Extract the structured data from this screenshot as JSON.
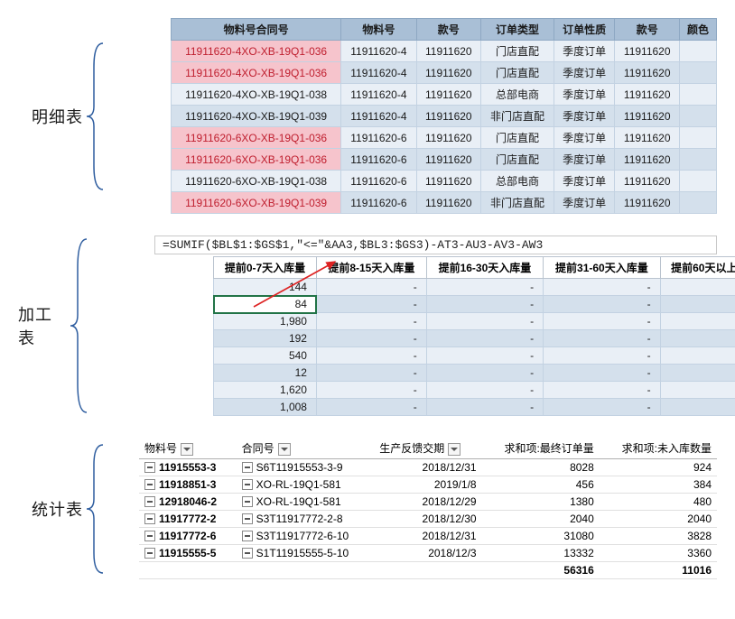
{
  "section1": {
    "label": "明细表",
    "columns": [
      "物料号合同号",
      "物料号",
      "款号",
      "订单类型",
      "订单性质",
      "款号",
      "颜色"
    ],
    "rows": [
      {
        "c": [
          "11911620-4XO-XB-19Q1-036",
          "11911620-4",
          "11911620",
          "门店直配",
          "季度订单",
          "11911620",
          ""
        ],
        "hl": true
      },
      {
        "c": [
          "11911620-4XO-XB-19Q1-036",
          "11911620-4",
          "11911620",
          "门店直配",
          "季度订单",
          "11911620",
          ""
        ],
        "hl": true
      },
      {
        "c": [
          "11911620-4XO-XB-19Q1-038",
          "11911620-4",
          "11911620",
          "总部电商",
          "季度订单",
          "11911620",
          ""
        ],
        "hl": false
      },
      {
        "c": [
          "11911620-4XO-XB-19Q1-039",
          "11911620-4",
          "11911620",
          "非门店直配",
          "季度订单",
          "11911620",
          ""
        ],
        "hl": false
      },
      {
        "c": [
          "11911620-6XO-XB-19Q1-036",
          "11911620-6",
          "11911620",
          "门店直配",
          "季度订单",
          "11911620",
          ""
        ],
        "hl": true
      },
      {
        "c": [
          "11911620-6XO-XB-19Q1-036",
          "11911620-6",
          "11911620",
          "门店直配",
          "季度订单",
          "11911620",
          ""
        ],
        "hl": true
      },
      {
        "c": [
          "11911620-6XO-XB-19Q1-038",
          "11911620-6",
          "11911620",
          "总部电商",
          "季度订单",
          "11911620",
          ""
        ],
        "hl": false
      },
      {
        "c": [
          "11911620-6XO-XB-19Q1-039",
          "11911620-6",
          "11911620",
          "非门店直配",
          "季度订单",
          "11911620",
          ""
        ],
        "hl": true
      }
    ]
  },
  "section2": {
    "label": "加工表",
    "formula": "=SUMIF($BL$1:$GS$1,\"<=\"&AA3,$BL3:$GS3)-AT3-AU3-AV3-AW3",
    "columns": [
      "提前0-7天入库量",
      "提前8-15天入库量",
      "提前16-30天入库量",
      "提前31-60天入库量",
      "提前60天以上入"
    ],
    "rows": [
      [
        "144",
        "-",
        "-",
        "-",
        "-"
      ],
      [
        "84",
        "-",
        "-",
        "-",
        "-"
      ],
      [
        "1,980",
        "-",
        "-",
        "-",
        "-"
      ],
      [
        "192",
        "-",
        "-",
        "-",
        "-"
      ],
      [
        "540",
        "-",
        "-",
        "-",
        "-"
      ],
      [
        "12",
        "-",
        "-",
        "-",
        "-"
      ],
      [
        "1,620",
        "-",
        "-",
        "-",
        "-"
      ],
      [
        "1,008",
        "-",
        "-",
        "-",
        "-"
      ]
    ],
    "selected_row": 1
  },
  "section3": {
    "label": "统计表",
    "columns": [
      "物料号",
      "合同号",
      "生产反馈交期",
      "求和项:最终订单量",
      "求和项:未入库数量"
    ],
    "filters": [
      true,
      true,
      true,
      false,
      false
    ],
    "rows": [
      [
        "11915553-3",
        "S6T11915553-3-9",
        "2018/12/31",
        "8028",
        "924"
      ],
      [
        "11918851-3",
        "XO-RL-19Q1-581",
        "2019/1/8",
        "456",
        "384"
      ],
      [
        "12918046-2",
        "XO-RL-19Q1-581",
        "2018/12/29",
        "1380",
        "480"
      ],
      [
        "11917772-2",
        "S3T11917772-2-8",
        "2018/12/30",
        "2040",
        "2040"
      ],
      [
        "11917772-6",
        "S3T11917772-6-10",
        "2018/12/31",
        "31080",
        "3828"
      ],
      [
        "11915555-5",
        "S1T11915555-5-10",
        "2018/12/3",
        "13332",
        "3360"
      ]
    ],
    "totals": [
      "",
      "",
      "",
      "56316",
      "11016"
    ]
  }
}
